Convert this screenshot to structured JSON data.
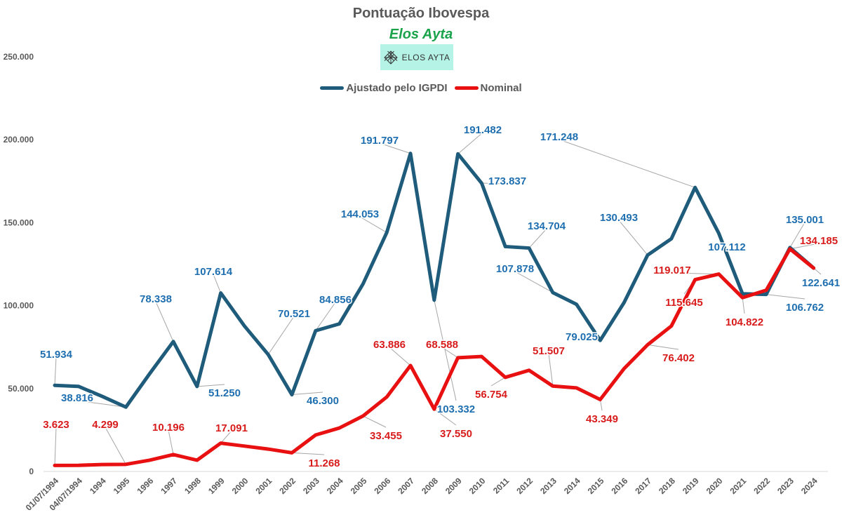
{
  "chart_data": {
    "type": "line",
    "title": "Pontuação Ibovespa",
    "subtitle": "Elos Ayta",
    "logo_text": "ELOS AYTA",
    "legend_position": "top",
    "grid": false,
    "ylim": [
      0,
      250000
    ],
    "yticks": [
      "0",
      "50.000",
      "100.000",
      "150.000",
      "200.000",
      "250.000"
    ],
    "ytick_values": [
      0,
      50000,
      100000,
      150000,
      200000,
      250000
    ],
    "categories": [
      "01/07/1994",
      "04/07/1994",
      "1994",
      "1995",
      "1996",
      "1997",
      "1998",
      "1999",
      "2000",
      "2001",
      "2002",
      "2003",
      "2004",
      "2005",
      "2006",
      "2007",
      "2008",
      "2009",
      "2010",
      "2011",
      "2012",
      "2013",
      "2014",
      "2015",
      "2016",
      "2017",
      "2018",
      "2019",
      "2020",
      "2021",
      "2022",
      "2023",
      "2024"
    ],
    "series": [
      {
        "name": "Ajustado pelo IGPDI",
        "color": "#1f5b7a",
        "label_color": "#1f6fb0",
        "values": [
          51934,
          51300,
          45300,
          38816,
          58900,
          78338,
          51250,
          107614,
          87700,
          70521,
          46300,
          84856,
          89000,
          113100,
          144053,
          191797,
          103332,
          191482,
          173837,
          135600,
          134704,
          107878,
          100800,
          79025,
          101700,
          130493,
          140300,
          171248,
          143600,
          107112,
          106762,
          135001,
          122641
        ],
        "labels": {
          "0": "51.934",
          "3": "38.816",
          "5": "78.338",
          "6": "51.250",
          "7": "107.614",
          "9": "70.521",
          "10": "46.300",
          "11": "84.856",
          "14": "144.053",
          "15": "191.797",
          "16": "103.332",
          "17": "191.482",
          "18": "173.837",
          "20": "134.704",
          "21": "107.878",
          "23": "79.025",
          "25": "130.493",
          "27": "171.248",
          "29": "107.112",
          "30": "106.762",
          "31": "135.001",
          "32": "122.641"
        }
      },
      {
        "name": "Nominal",
        "color": "#e81010",
        "label_color": "#d81b1b",
        "values": [
          3623,
          3700,
          4200,
          4299,
          6800,
          10196,
          6800,
          17091,
          15300,
          13500,
          11268,
          22000,
          26200,
          33455,
          44900,
          63886,
          37550,
          68588,
          69300,
          56754,
          61000,
          51507,
          50400,
          43349,
          61900,
          76402,
          87700,
          115645,
          119017,
          104822,
          109300,
          134185,
          122600
        ],
        "labels": {
          "0": "3.623",
          "3": "4.299",
          "5": "10.196",
          "7": "17.091",
          "10": "11.268",
          "13": "33.455",
          "15": "63.886",
          "16": "37.550",
          "17": "68.588",
          "19": "56.754",
          "21": "51.507",
          "23": "43.349",
          "25": "76.402",
          "27": "115.645",
          "28": "119.017",
          "29": "104.822",
          "31": "134.185"
        }
      }
    ]
  }
}
